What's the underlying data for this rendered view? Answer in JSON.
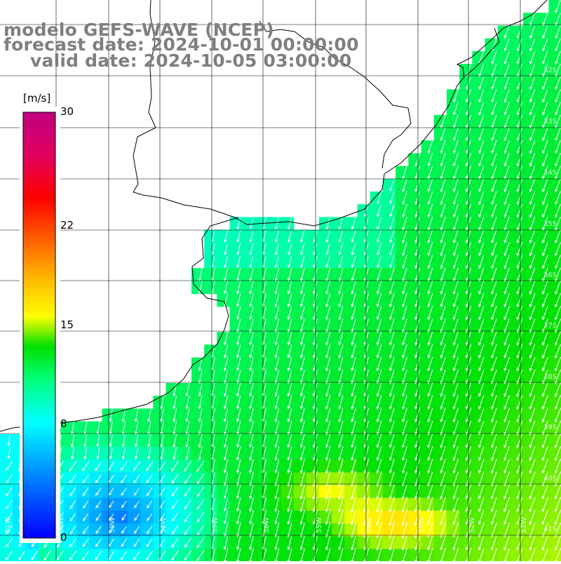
{
  "title": {
    "line1": "modelo GEFS-WAVE (NCEP)",
    "line2": "forecast date: 2024-10-01 00:00:00",
    "line3": "valid date: 2024-10-05 03:00:00"
  },
  "colorbar": {
    "unit": "[m/s]",
    "ticks": [
      {
        "label": "30",
        "value": 30
      },
      {
        "label": "22",
        "value": 22
      },
      {
        "label": "15",
        "value": 15
      },
      {
        "label": "8",
        "value": 8
      },
      {
        "label": "0",
        "value": 0
      }
    ]
  },
  "map": {
    "lat_labels": [
      "32S",
      "33S",
      "34S",
      "35S",
      "36S",
      "37S",
      "38S",
      "39S",
      "40S",
      "41S"
    ],
    "lon_labels": [
      "61W",
      "60W",
      "59W",
      "58W",
      "57W",
      "56W",
      "55W",
      "54W",
      "53W",
      "52W",
      "51W"
    ],
    "colors": {
      "land": "#ffffff",
      "grid": "#000000",
      "coast": "#000000",
      "title": "#7f7f7f",
      "arrows": "#ffffff"
    }
  }
}
